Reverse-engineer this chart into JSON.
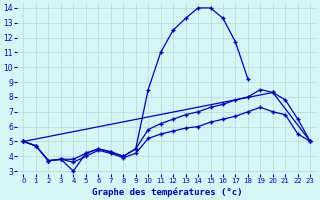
{
  "x": [
    0,
    1,
    2,
    3,
    4,
    5,
    6,
    7,
    8,
    9,
    10,
    11,
    12,
    13,
    14,
    15,
    16,
    17,
    18,
    19,
    20,
    21,
    22,
    23
  ],
  "line1": [
    5.0,
    4.7,
    3.7,
    3.8,
    3.0,
    4.2,
    4.5,
    4.3,
    4.0,
    4.5,
    8.5,
    11.0,
    12.5,
    13.3,
    14.0,
    14.0,
    13.3,
    11.7,
    9.2,
    null,
    null,
    null,
    null,
    null
  ],
  "line2": [
    5.0,
    null,
    null,
    null,
    null,
    null,
    null,
    null,
    null,
    null,
    null,
    null,
    null,
    null,
    null,
    null,
    null,
    null,
    null,
    null,
    8.3,
    null,
    null,
    5.0
  ],
  "line3": [
    5.0,
    4.7,
    3.7,
    3.8,
    3.8,
    4.2,
    4.5,
    4.3,
    4.0,
    4.5,
    5.8,
    6.2,
    6.5,
    6.8,
    7.0,
    7.3,
    7.5,
    7.8,
    8.0,
    8.5,
    8.3,
    7.8,
    6.5,
    5.0
  ],
  "line4": [
    5.0,
    4.7,
    3.7,
    3.8,
    3.6,
    4.0,
    4.4,
    4.2,
    3.9,
    4.2,
    5.2,
    5.5,
    5.7,
    5.9,
    6.0,
    6.3,
    6.5,
    6.7,
    7.0,
    7.3,
    7.0,
    6.8,
    5.5,
    5.0
  ],
  "line_color": "#0000cc",
  "bg_color": "#d6f5f5",
  "grid_color": "#b8dede",
  "title": "Graphe des températures (°c)",
  "ylim": [
    3,
    14
  ],
  "xlim": [
    0,
    23
  ],
  "yticks": [
    3,
    4,
    5,
    6,
    7,
    8,
    9,
    10,
    11,
    12,
    13,
    14
  ],
  "xticks": [
    0,
    1,
    2,
    3,
    4,
    5,
    6,
    7,
    8,
    9,
    10,
    11,
    12,
    13,
    14,
    15,
    16,
    17,
    18,
    19,
    20,
    21,
    22,
    23
  ]
}
